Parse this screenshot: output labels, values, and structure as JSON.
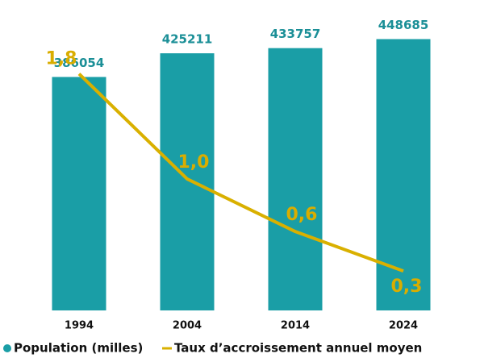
{
  "chart_data": {
    "type": "bar_line",
    "categories": [
      "1994",
      "2004",
      "2014",
      "2024"
    ],
    "series": [
      {
        "name": "Population (milles)",
        "type": "bar",
        "color": "#1a9ea6",
        "values": [
          386054,
          425211,
          433757,
          448685
        ]
      },
      {
        "name": "Taux d’accroissement annuel moyen",
        "type": "line",
        "axis": "y2",
        "color": "#d9b000",
        "values": [
          1.8,
          1.0,
          0.6,
          0.3
        ],
        "value_labels": [
          "1,8",
          "1,0",
          "0,6",
          "0,3"
        ]
      }
    ],
    "ylim": [
      0,
      500000
    ],
    "y2lim": [
      0,
      2.3
    ]
  }
}
